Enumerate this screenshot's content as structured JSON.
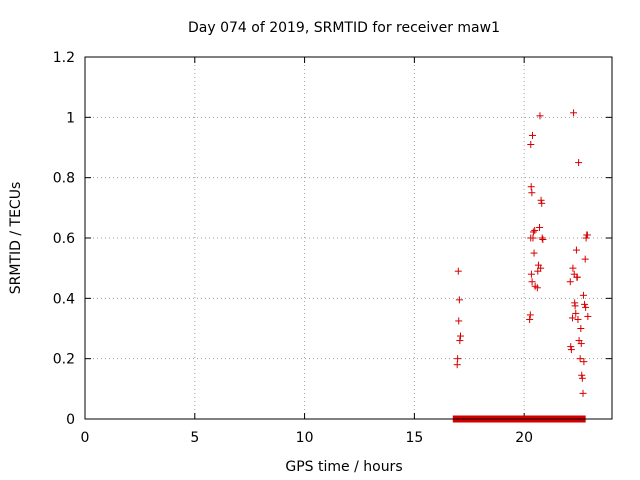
{
  "colors": {
    "marker": "#d40000",
    "grid": "#a0a0a0",
    "axis": "#000000"
  },
  "chart_data": {
    "type": "scatter",
    "title": "Day 074 of 2019, SRMTID for receiver maw1",
    "xlabel": "GPS time / hours",
    "ylabel": "SRMTID / TECUs",
    "xlim": [
      0,
      24
    ],
    "ylim": [
      0,
      1.2
    ],
    "xticks": [
      0,
      5,
      10,
      15,
      20
    ],
    "xtick_labels": [
      "0",
      "5",
      "10",
      "15",
      "20"
    ],
    "yticks": [
      0,
      0.2,
      0.4,
      0.6,
      0.8,
      1.0,
      1.2
    ],
    "ytick_labels": [
      "0",
      "0.2",
      "0.4",
      "0.6",
      "0.8",
      "1",
      "1.2"
    ],
    "grid": true,
    "marker": "+",
    "series": [
      {
        "name": "SRMTID",
        "x": [
          16.95,
          16.97,
          17.0,
          17.02,
          17.05,
          17.07,
          17.1,
          20.25,
          20.28,
          20.3,
          20.3,
          20.32,
          20.33,
          20.35,
          20.36,
          20.38,
          20.4,
          20.42,
          20.45,
          20.48,
          20.5,
          20.6,
          20.62,
          20.65,
          20.7,
          20.72,
          20.75,
          20.77,
          20.8,
          20.82,
          20.85,
          22.1,
          22.12,
          22.15,
          22.2,
          22.22,
          22.25,
          22.28,
          22.3,
          22.32,
          22.35,
          22.38,
          22.4,
          22.42,
          22.45,
          22.48,
          22.5,
          22.55,
          22.58,
          22.6,
          22.62,
          22.65,
          22.68,
          22.7,
          22.72,
          22.75,
          22.78,
          22.8,
          22.82,
          22.85,
          22.88,
          22.9
        ],
        "y": [
          0.18,
          0.2,
          0.49,
          0.325,
          0.395,
          0.26,
          0.275,
          0.33,
          0.345,
          0.91,
          0.6,
          0.77,
          0.48,
          0.75,
          0.455,
          0.94,
          0.6,
          0.62,
          0.55,
          0.625,
          0.44,
          0.435,
          0.49,
          0.51,
          0.635,
          1.005,
          0.5,
          0.725,
          0.715,
          0.6,
          0.595,
          0.455,
          0.24,
          0.23,
          0.335,
          0.5,
          1.015,
          0.48,
          0.385,
          0.375,
          0.35,
          0.56,
          0.47,
          0.47,
          0.33,
          0.85,
          0.26,
          0.2,
          0.3,
          0.25,
          0.145,
          0.135,
          0.085,
          0.41,
          0.19,
          0.38,
          0.53,
          0.37,
          0.6,
          0.61,
          0.61,
          0.34
        ],
        "zero_run": {
          "x_start": 16.75,
          "x_end": 22.8,
          "y": 0
        }
      }
    ]
  }
}
